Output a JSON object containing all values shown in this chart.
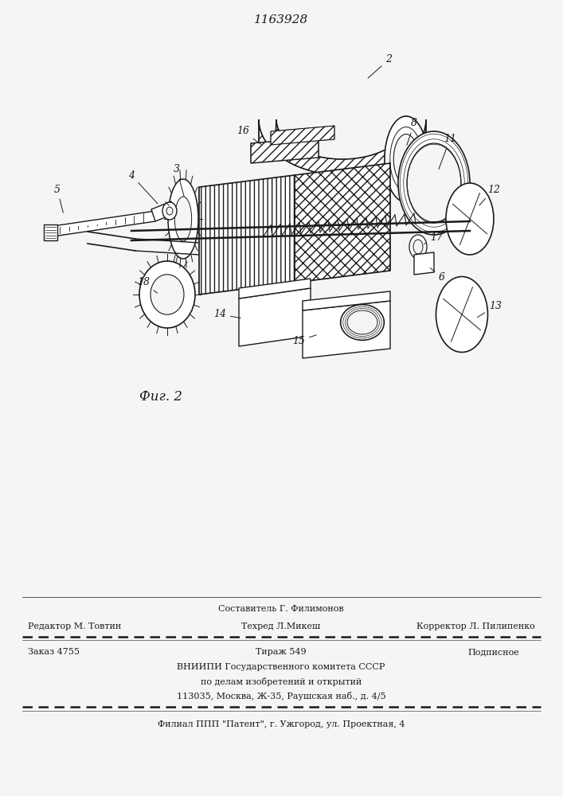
{
  "patent_number": "1163928",
  "fig_label": "Фиг. 2",
  "bg_color": "#f5f5f3",
  "line_color": "#1a1a1a",
  "header_row0_center": "Составитель Г. Филимонов",
  "header_row1_left": "Редактор М. Товтин",
  "header_row1_center": "Техред Л.Микеш",
  "header_row1_right": "Корректор Л. Пилипенко",
  "info_left": "Заказ 4755",
  "info_center": "Тираж 549",
  "info_right": "Подписное",
  "info_line2": "ВНИИПИ Государственного комитета СССР",
  "info_line3": "по делам изобретений и открытий",
  "info_line4": "113035, Москва, Ж-35, Раушская наб., д. 4/5",
  "footer": "Филиал ППП \"Патент\", г. Ужгород, ул. Проектная, 4"
}
